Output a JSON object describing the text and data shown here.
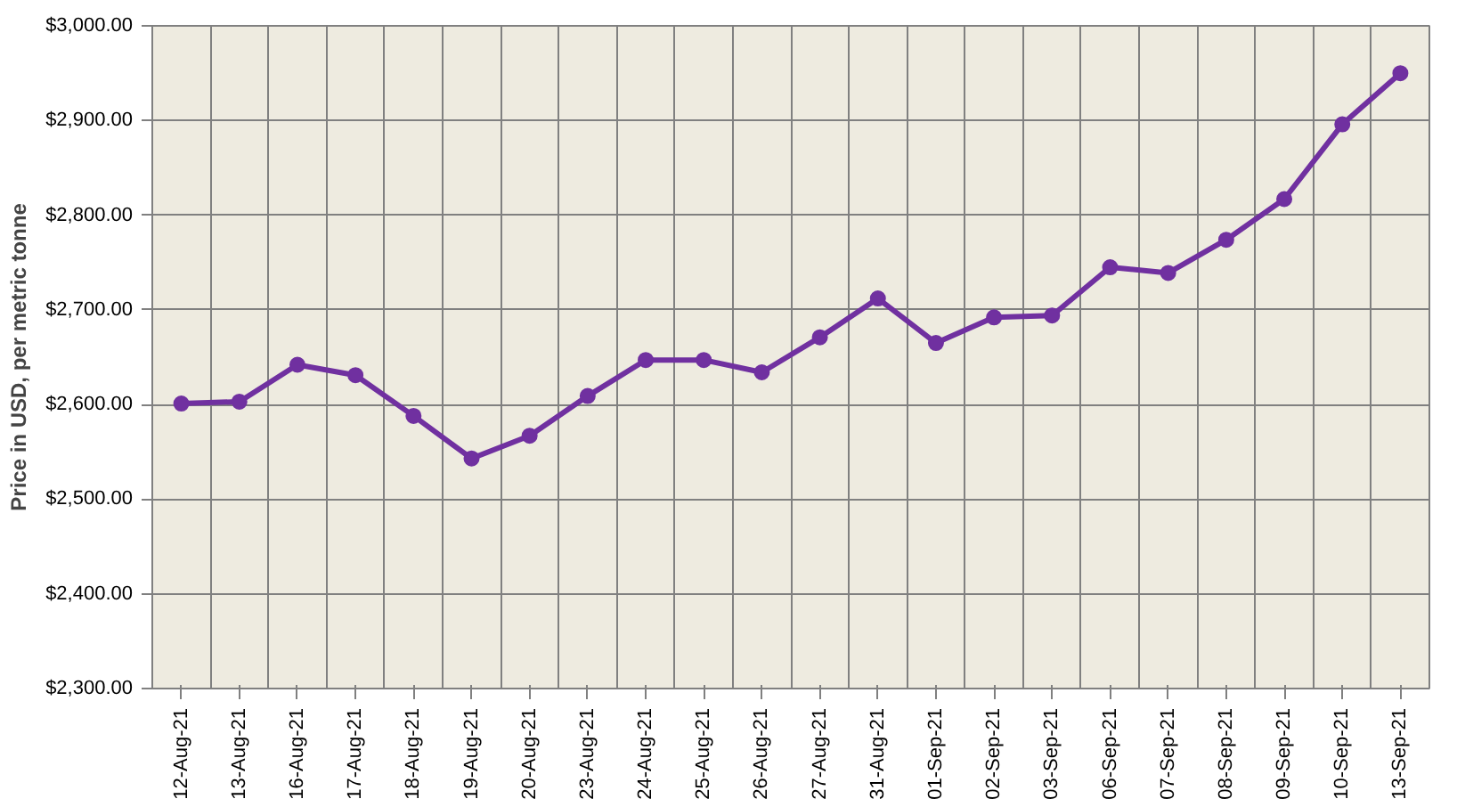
{
  "chart_data": {
    "type": "line",
    "ylabel": "Price in USD, per metric tonne",
    "categories": [
      "12-Aug-21",
      "13-Aug-21",
      "16-Aug-21",
      "17-Aug-21",
      "18-Aug-21",
      "19-Aug-21",
      "20-Aug-21",
      "23-Aug-21",
      "24-Aug-21",
      "25-Aug-21",
      "26-Aug-21",
      "27-Aug-21",
      "31-Aug-21",
      "01-Sep-21",
      "02-Sep-21",
      "03-Sep-21",
      "06-Sep-21",
      "07-Sep-21",
      "08-Sep-21",
      "09-Sep-21",
      "10-Sep-21",
      "13-Sep-21"
    ],
    "series": [
      {
        "color": "#7030a0",
        "values": [
          2601,
          2603,
          2642,
          2631,
          2588,
          2543,
          2567,
          2609,
          2647,
          2647,
          2634,
          2671,
          2712,
          2665,
          2692,
          2694,
          2745,
          2739,
          2774,
          2817,
          2896,
          2950
        ]
      }
    ],
    "ylim": [
      2300,
      3000
    ],
    "yticks": [
      {
        "value": 2300,
        "label": "$2,300.00"
      },
      {
        "value": 2400,
        "label": "$2,400.00"
      },
      {
        "value": 2500,
        "label": "$2,500.00"
      },
      {
        "value": 2600,
        "label": "$2,600.00"
      },
      {
        "value": 2700,
        "label": "$2,700.00"
      },
      {
        "value": 2800,
        "label": "$2,800.00"
      },
      {
        "value": 2900,
        "label": "$2,900.00"
      },
      {
        "value": 3000,
        "label": "$3,000.00"
      }
    ],
    "grid": true,
    "marker": "circle",
    "line_style": "solid"
  }
}
